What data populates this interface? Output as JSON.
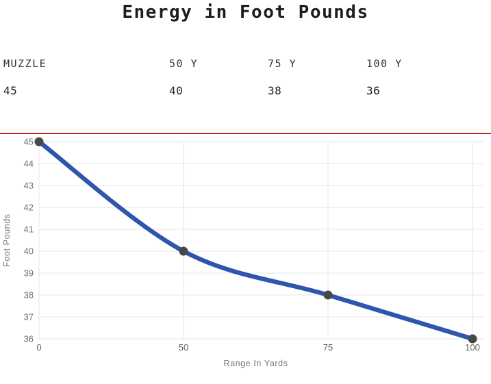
{
  "title": "Energy in Foot Pounds",
  "table": {
    "headers": [
      "MUZZLE",
      "50 Y",
      "75 Y",
      "100 Y"
    ],
    "values": [
      "45",
      "40",
      "38",
      "36"
    ]
  },
  "chart_data": {
    "type": "line",
    "categories": [
      "0",
      "50",
      "75",
      "100"
    ],
    "values": [
      45,
      40,
      38,
      36
    ],
    "title": "",
    "xlabel": "Range In Yards",
    "ylabel": "Foot Pounds",
    "ylim": [
      36,
      45
    ],
    "y_ticks": [
      36,
      37,
      38,
      39,
      40,
      41,
      42,
      43,
      44,
      45
    ],
    "grid": true,
    "smooth": true,
    "legend": "none",
    "line_color": "#2f56ad",
    "point_color": "#484848",
    "grid_color": "#e6e6e6"
  },
  "colors": {
    "divider_red": "#c2281d",
    "title_text": "#1d1d1d",
    "table_text": "#333333"
  }
}
